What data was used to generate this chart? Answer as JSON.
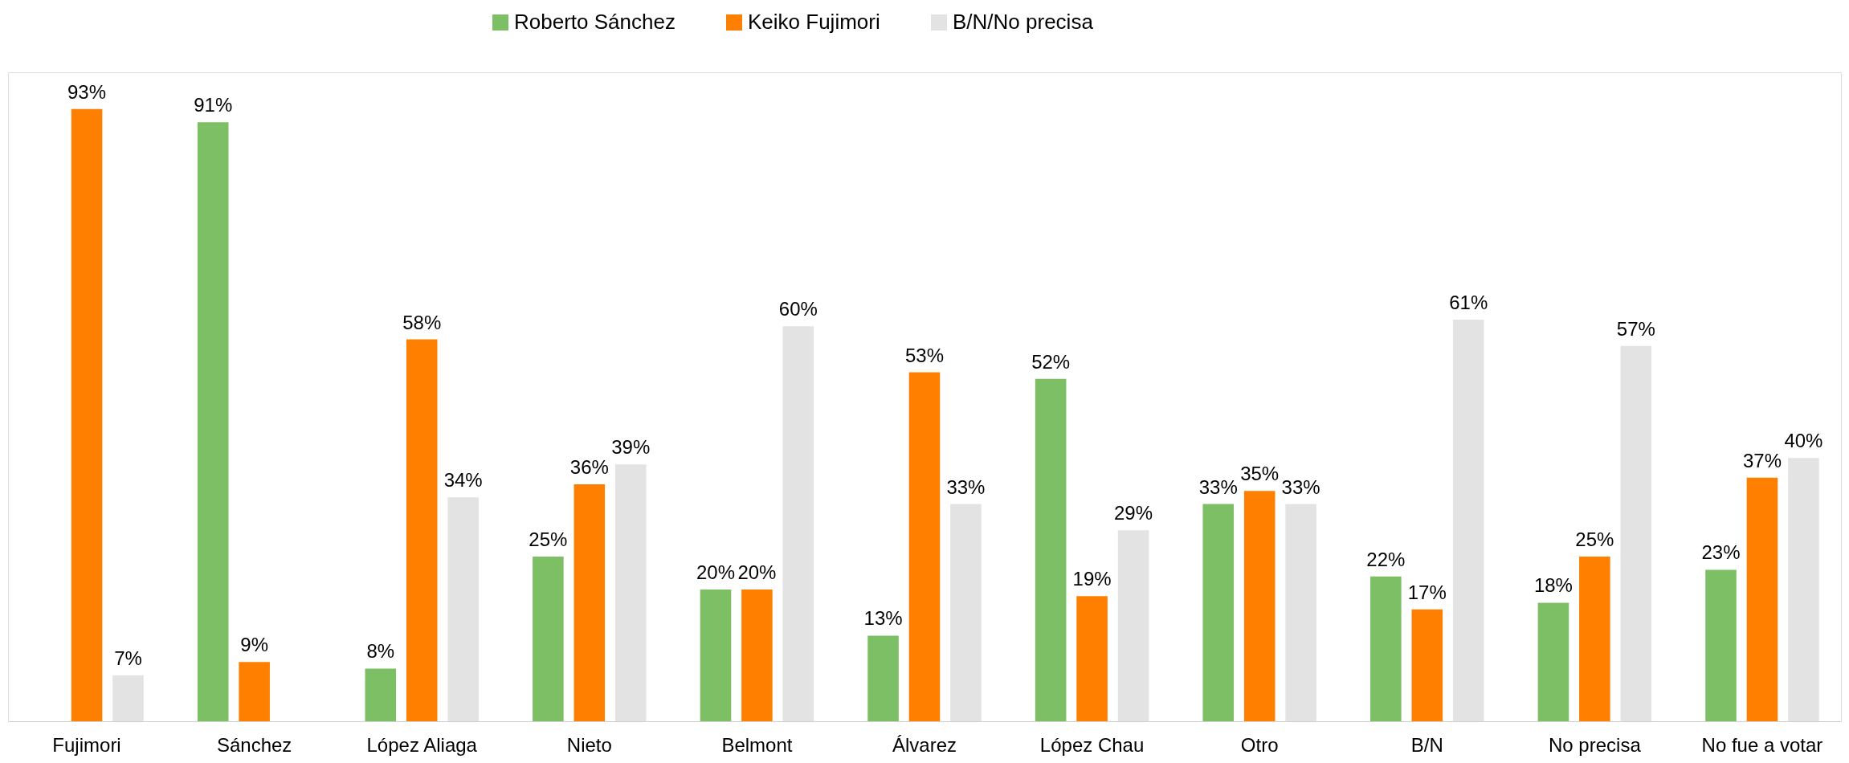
{
  "chart_data": {
    "type": "bar",
    "categories": [
      "Fujimori",
      "Sánchez",
      "López Aliaga",
      "Nieto",
      "Belmont",
      "Álvarez",
      "López Chau",
      "Otro",
      "B/N",
      "No precisa",
      "No fue a votar"
    ],
    "series": [
      {
        "name": "Roberto Sánchez",
        "color": "#7cbf64",
        "values": [
          null,
          91,
          8,
          25,
          20,
          13,
          52,
          33,
          22,
          18,
          23
        ],
        "value_labels": [
          null,
          "91%",
          "8%",
          "25%",
          "20%",
          "13%",
          "52%",
          "33%",
          "22%",
          "18%",
          "23%"
        ]
      },
      {
        "name": "Keiko Fujimori",
        "color": "#ff8000",
        "values": [
          93,
          9,
          58,
          36,
          20,
          53,
          19,
          35,
          17,
          25,
          37
        ],
        "value_labels": [
          "93%",
          "9%",
          "58%",
          "36%",
          "20%",
          "53%",
          "19%",
          "35%",
          "17%",
          "25%",
          "37%"
        ]
      },
      {
        "name": "B/N/No precisa",
        "color": "#e3e3e3",
        "values": [
          7,
          null,
          34,
          39,
          60,
          33,
          29,
          33,
          61,
          57,
          40
        ],
        "value_labels": [
          "7%",
          null,
          "34%",
          "39%",
          "60%",
          "33%",
          "29%",
          "33%",
          "61%",
          "57%",
          "40%"
        ]
      }
    ],
    "legend": "top",
    "grid": false
  }
}
